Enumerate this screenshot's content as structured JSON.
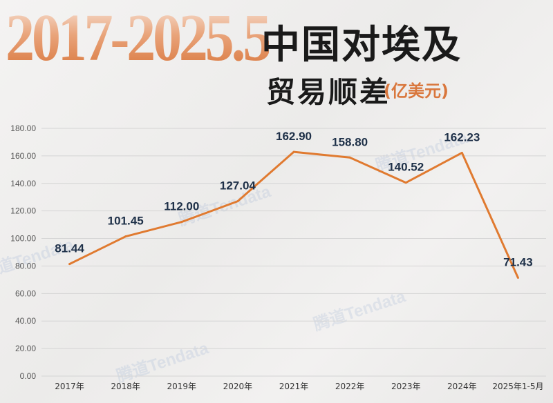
{
  "header": {
    "year_range": "2017-2025.5",
    "title_line1": "中国对埃及",
    "title_line2": "贸易顺差",
    "unit": "(亿美元)"
  },
  "watermarks": [
    "腾道Tendata",
    "腾道Tendata",
    "腾道Tendata",
    "腾道Tendata",
    "腾道Tendata"
  ],
  "chart_data": {
    "type": "line",
    "title": "中国对埃及贸易顺差",
    "xlabel": "",
    "ylabel": "",
    "categories": [
      "2017年",
      "2018年",
      "2019年",
      "2020年",
      "2021年",
      "2022年",
      "2023年",
      "2024年",
      "2025年1-5月"
    ],
    "series": [
      {
        "values": [
          81.44,
          101.45,
          112.0,
          127.04,
          162.9,
          158.8,
          140.52,
          162.23,
          71.43
        ],
        "data_labels": [
          "81.44",
          "101.45",
          "112.00",
          "127.04",
          "162.90",
          "158.80",
          "140.52",
          "162.23",
          "71.43"
        ],
        "color": "#e07a30"
      }
    ],
    "ylim": [
      0,
      180
    ],
    "yticks": [
      "0.00",
      "20.00",
      "40.00",
      "60.00",
      "80.00",
      "100.00",
      "120.00",
      "140.00",
      "160.00",
      "180.00"
    ],
    "grid": true,
    "legend": "none"
  }
}
